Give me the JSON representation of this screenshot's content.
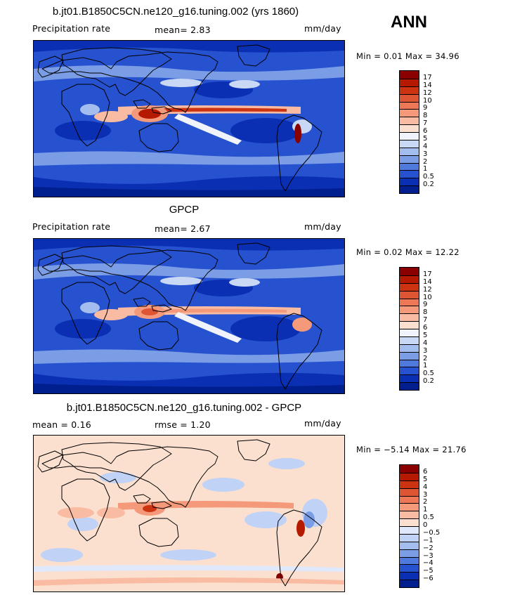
{
  "season": "ANN",
  "panels": [
    {
      "id": "model",
      "title": "b.jt01.B1850C5CN.ne120_g16.tuning.002 (yrs 1860)",
      "left_text": "Precipitation rate",
      "mid_text": "mean=   2.83",
      "units": "mm/day",
      "minmax": "Min =    0.01 Max =  34.96"
    },
    {
      "id": "obs",
      "title": "GPCP",
      "left_text": "Precipitation rate",
      "mid_text": "mean=   2.67",
      "units": "mm/day",
      "minmax": "Min =    0.02 Max =  12.22"
    },
    {
      "id": "diff",
      "title": "b.jt01.B1850C5CN.ne120_g16.tuning.002 - GPCP",
      "left_text": "mean =    0.16",
      "mid_text": "rmse =    1.20",
      "units": "mm/day",
      "minmax": "Min =  −5.14 Max =  21.76"
    }
  ],
  "colorbars": {
    "precip": {
      "labels": [
        "17",
        "14",
        "12",
        "10",
        "9",
        "8",
        "7",
        "6",
        "5",
        "4",
        "3",
        "2",
        "1",
        "0.5",
        "0.2"
      ],
      "colors": [
        "#8a0000",
        "#b51a00",
        "#cc3311",
        "#dd5533",
        "#ee7755",
        "#f49a7a",
        "#f9bca2",
        "#fbe0d0",
        "#f0f3fb",
        "#c8d8f5",
        "#a3bdee",
        "#7b9de6",
        "#4f79dc",
        "#2651cf",
        "#0b2fb3",
        "#001f8f"
      ]
    },
    "diff": {
      "labels": [
        "6",
        "5",
        "4",
        "3",
        "2",
        "1",
        "0.5",
        "0",
        "−0.5",
        "−1",
        "−2",
        "−3",
        "−4",
        "−5",
        "−6"
      ],
      "colors": [
        "#8a0000",
        "#b51a00",
        "#cc3311",
        "#dd5533",
        "#ee7755",
        "#f49a7a",
        "#f9bca2",
        "#fbe0d0",
        "#e0e9fb",
        "#c0d2f5",
        "#a3bdee",
        "#7b9de6",
        "#4f79dc",
        "#2651cf",
        "#0b2fb3",
        "#001f8f"
      ]
    }
  },
  "chart_data": [
    {
      "type": "heatmap",
      "title": "b.jt01.B1850C5CN.ne120_g16.tuning.002 (yrs 1860)",
      "variable": "Precipitation rate",
      "units": "mm/day",
      "mean": 2.83,
      "min": 0.01,
      "max": 34.96,
      "contour_levels": [
        0.2,
        0.5,
        1,
        2,
        3,
        4,
        5,
        6,
        7,
        8,
        9,
        10,
        12,
        14,
        17
      ]
    },
    {
      "type": "heatmap",
      "title": "GPCP",
      "variable": "Precipitation rate",
      "units": "mm/day",
      "mean": 2.67,
      "min": 0.02,
      "max": 12.22,
      "contour_levels": [
        0.2,
        0.5,
        1,
        2,
        3,
        4,
        5,
        6,
        7,
        8,
        9,
        10,
        12,
        14,
        17
      ]
    },
    {
      "type": "heatmap",
      "title": "b.jt01.B1850C5CN.ne120_g16.tuning.002 - GPCP",
      "units": "mm/day",
      "mean": 0.16,
      "rmse": 1.2,
      "min": -5.14,
      "max": 21.76,
      "contour_levels": [
        -6,
        -5,
        -4,
        -3,
        -2,
        -1,
        -0.5,
        0,
        0.5,
        1,
        2,
        3,
        4,
        5,
        6
      ]
    }
  ]
}
